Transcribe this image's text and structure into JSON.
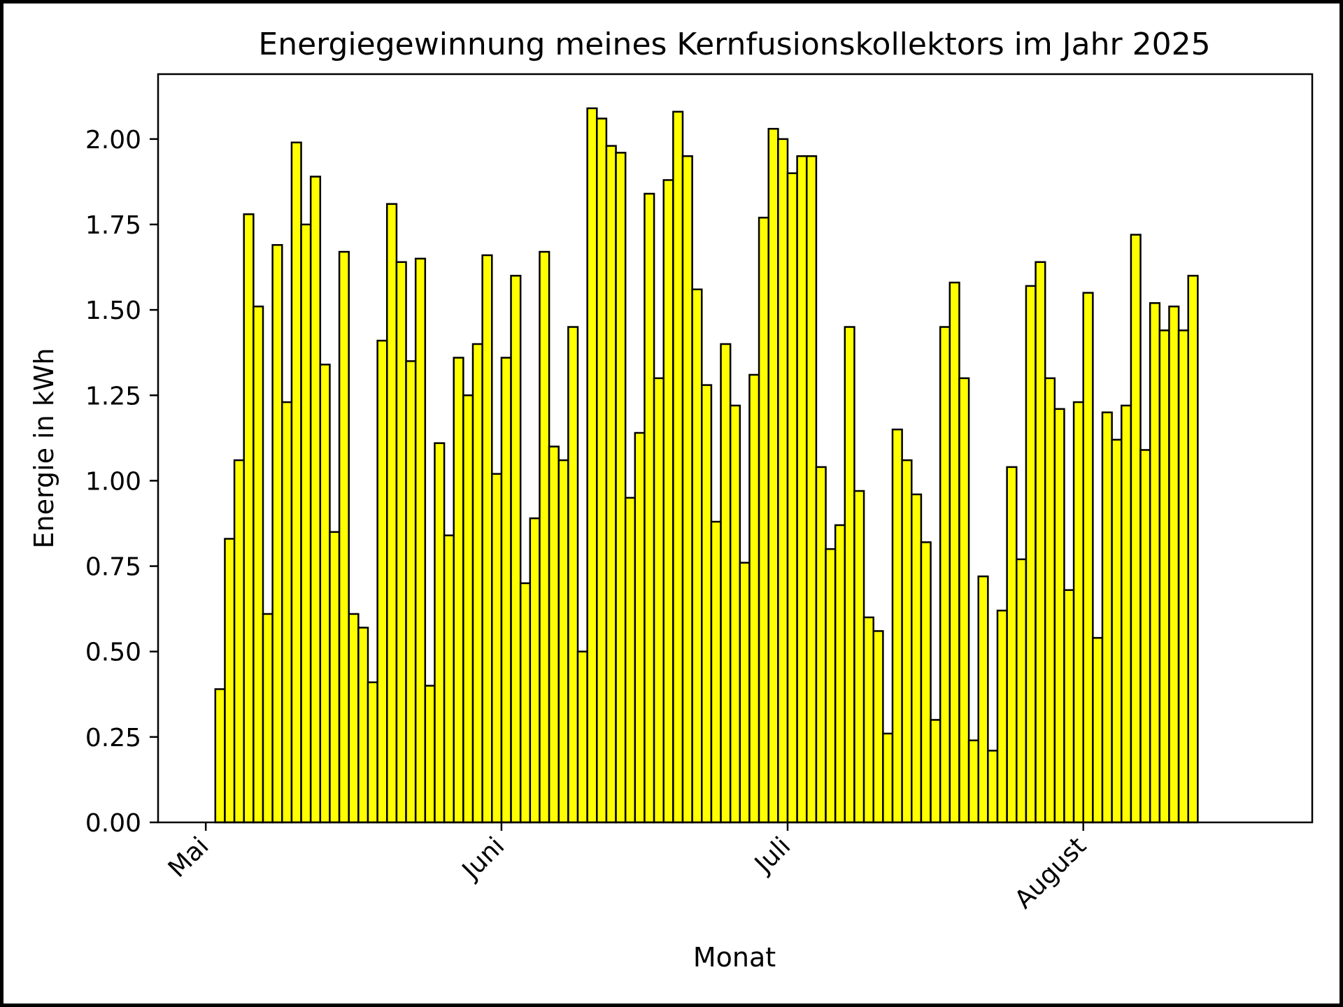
{
  "chart_data": {
    "type": "bar",
    "title": "Energiegewinnung meines Kernfusionskollektors im Jahr 2025",
    "xlabel": "Monat",
    "ylabel": "Energie in kWh",
    "ylim": [
      0,
      2.19
    ],
    "y_ticks": [
      "0.00",
      "0.25",
      "0.50",
      "0.75",
      "1.00",
      "1.25",
      "1.50",
      "1.75",
      "2.00"
    ],
    "x_ticks": [
      {
        "label": "Mai",
        "date": "2025-05-01"
      },
      {
        "label": "Juni",
        "date": "2025-06-01"
      },
      {
        "label": "Juli",
        "date": "2025-07-01"
      },
      {
        "label": "August",
        "date": "2025-08-01"
      }
    ],
    "x_range": [
      "2025-04-26",
      "2025-08-25"
    ],
    "x_start": "2025-05-01",
    "bar_color": "#ffff00",
    "edge_color": "#000000",
    "grid": false,
    "values": [
      0.0,
      0.39,
      0.83,
      1.06,
      1.78,
      1.51,
      0.61,
      1.69,
      1.23,
      1.99,
      1.75,
      1.89,
      1.34,
      0.85,
      1.67,
      0.61,
      0.57,
      0.41,
      1.41,
      1.81,
      1.64,
      1.35,
      1.65,
      0.4,
      1.11,
      0.84,
      1.36,
      1.25,
      1.4,
      1.66,
      1.02,
      1.36,
      1.6,
      0.7,
      0.89,
      1.67,
      1.1,
      1.06,
      1.45,
      0.5,
      2.09,
      2.06,
      1.98,
      1.96,
      0.95,
      1.14,
      1.84,
      1.3,
      1.88,
      2.08,
      1.95,
      1.56,
      1.28,
      0.88,
      1.4,
      1.22,
      0.76,
      1.31,
      1.77,
      2.03,
      2.0,
      1.9,
      1.95,
      1.95,
      1.04,
      0.8,
      0.87,
      1.45,
      0.97,
      0.6,
      0.56,
      0.26,
      1.15,
      1.06,
      0.96,
      0.82,
      0.3,
      1.45,
      1.58,
      1.3,
      0.24,
      0.72,
      0.21,
      0.62,
      1.04,
      0.77,
      1.57,
      1.64,
      1.3,
      1.21,
      0.68,
      1.23,
      1.55,
      0.54,
      1.2,
      1.12,
      1.22,
      1.72,
      1.09,
      1.52,
      1.44,
      1.51,
      1.44,
      1.6
    ]
  }
}
